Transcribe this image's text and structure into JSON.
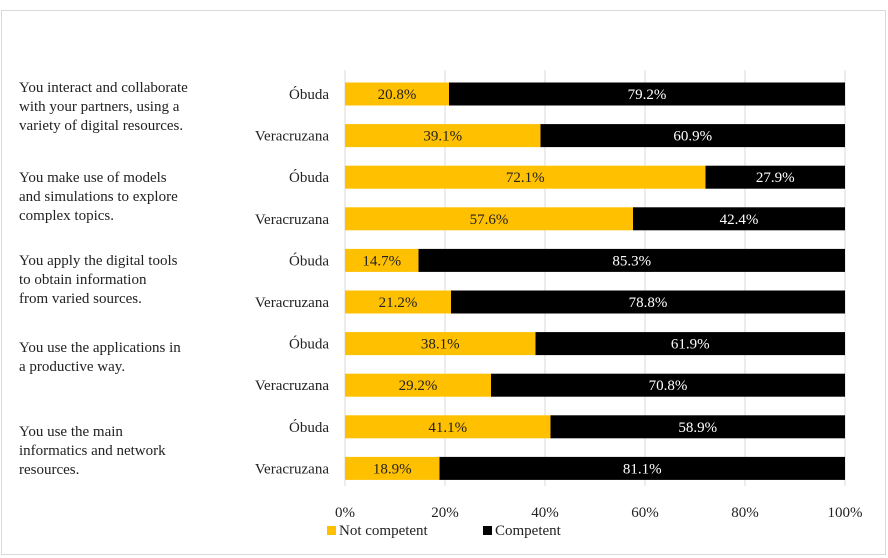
{
  "chart_data": {
    "type": "bar",
    "orientation": "horizontal",
    "stacked": "percent",
    "title": "",
    "xlabel": "",
    "ylabel": "",
    "xlim": [
      0,
      100
    ],
    "x_ticks": [
      "0%",
      "20%",
      "40%",
      "60%",
      "80%",
      "100%"
    ],
    "grid": true,
    "legend_position": "bottom",
    "groups": [
      "You interact and collaborate with your partners, using a variety of digital resources.",
      "You make use of models and simulations to explore complex topics.",
      "You apply the digital tools to obtain information from varied sources.",
      "You use the applications in a productive way.",
      "You use the main informatics and network resources."
    ],
    "group_label_lines": [
      [
        "You interact and collaborate",
        "with your partners, using a",
        "variety of digital resources."
      ],
      [
        "You make use of models",
        "and simulations to explore",
        "complex topics."
      ],
      [
        "You apply the digital tools",
        "to obtain information",
        "from varied sources."
      ],
      [
        "You use the applications in",
        "a productive way."
      ],
      [
        "You use the main",
        "informatics and network",
        "resources."
      ]
    ],
    "categories": [
      "Óbuda",
      "Veracruzana",
      "Óbuda",
      "Veracruzana",
      "Óbuda",
      "Veracruzana",
      "Óbuda",
      "Veracruzana",
      "Óbuda",
      "Veracruzana"
    ],
    "series": [
      {
        "name": "Not competent",
        "color": "#ffc000",
        "label_color": "#222222",
        "values": [
          20.8,
          39.1,
          72.1,
          57.6,
          14.7,
          21.2,
          38.1,
          29.2,
          41.1,
          18.9
        ],
        "labels": [
          "20.8%",
          "39.1%",
          "72.1%",
          "57.6%",
          "14.7%",
          "21.2%",
          "38.1%",
          "29.2%",
          "41.1%",
          "18.9%"
        ]
      },
      {
        "name": "Competent",
        "color": "#000000",
        "label_color": "#ffffff",
        "values": [
          79.2,
          60.9,
          27.9,
          42.4,
          85.3,
          78.8,
          61.9,
          70.8,
          58.9,
          81.1
        ],
        "labels": [
          "79.2%",
          "60.9%",
          "27.9%",
          "42.4%",
          "85.3%",
          "78.8%",
          "61.9%",
          "70.8%",
          "58.9%",
          "81.1%"
        ]
      }
    ]
  }
}
